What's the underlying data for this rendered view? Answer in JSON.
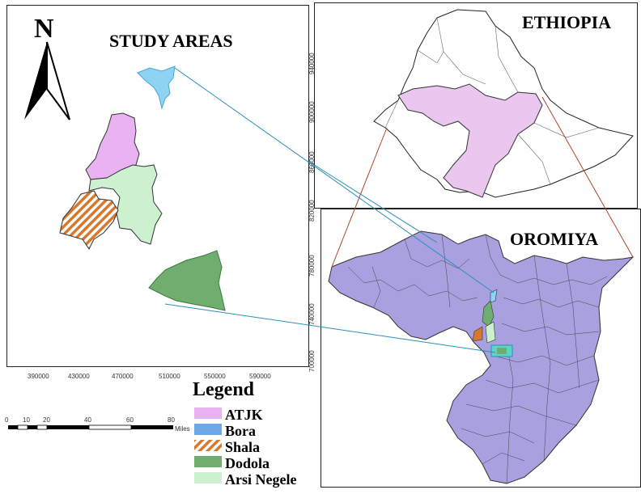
{
  "study_map": {
    "title": "STUDY AREAS",
    "north_label": "N",
    "x_ticks": [
      "390000",
      "430000",
      "470000",
      "510000",
      "550000",
      "590000"
    ],
    "y_ticks": [
      "940000",
      "900000",
      "860000",
      "820000",
      "780000",
      "740000",
      "700000"
    ]
  },
  "ethiopia_map": {
    "title": "ETHIOPIA"
  },
  "oromiya_map": {
    "title": "OROMIYA"
  },
  "legend": {
    "title": "Legend",
    "items": [
      {
        "label": "ATJK",
        "color": "#e9b3f2",
        "pattern": "solid"
      },
      {
        "label": "Bora",
        "color": "#6fa8e8",
        "pattern": "solid"
      },
      {
        "label": "Shala",
        "color": "#d9782d",
        "pattern": "hatch"
      },
      {
        "label": "Dodola",
        "color": "#6fae6f",
        "pattern": "solid"
      },
      {
        "label": "Arsi Negele",
        "color": "#cdf0cf",
        "pattern": "solid"
      }
    ]
  },
  "scale_bar": {
    "labels": [
      "0",
      "10",
      "20",
      "40",
      "60",
      "80"
    ],
    "unit": "Miles"
  },
  "colors": {
    "oromiya_fill": "#a9a0e0",
    "ethiopia_oromiya_fill": "#ebc6ef",
    "leader_blue": "#2a8fb8",
    "leader_red": "#b0452a"
  }
}
